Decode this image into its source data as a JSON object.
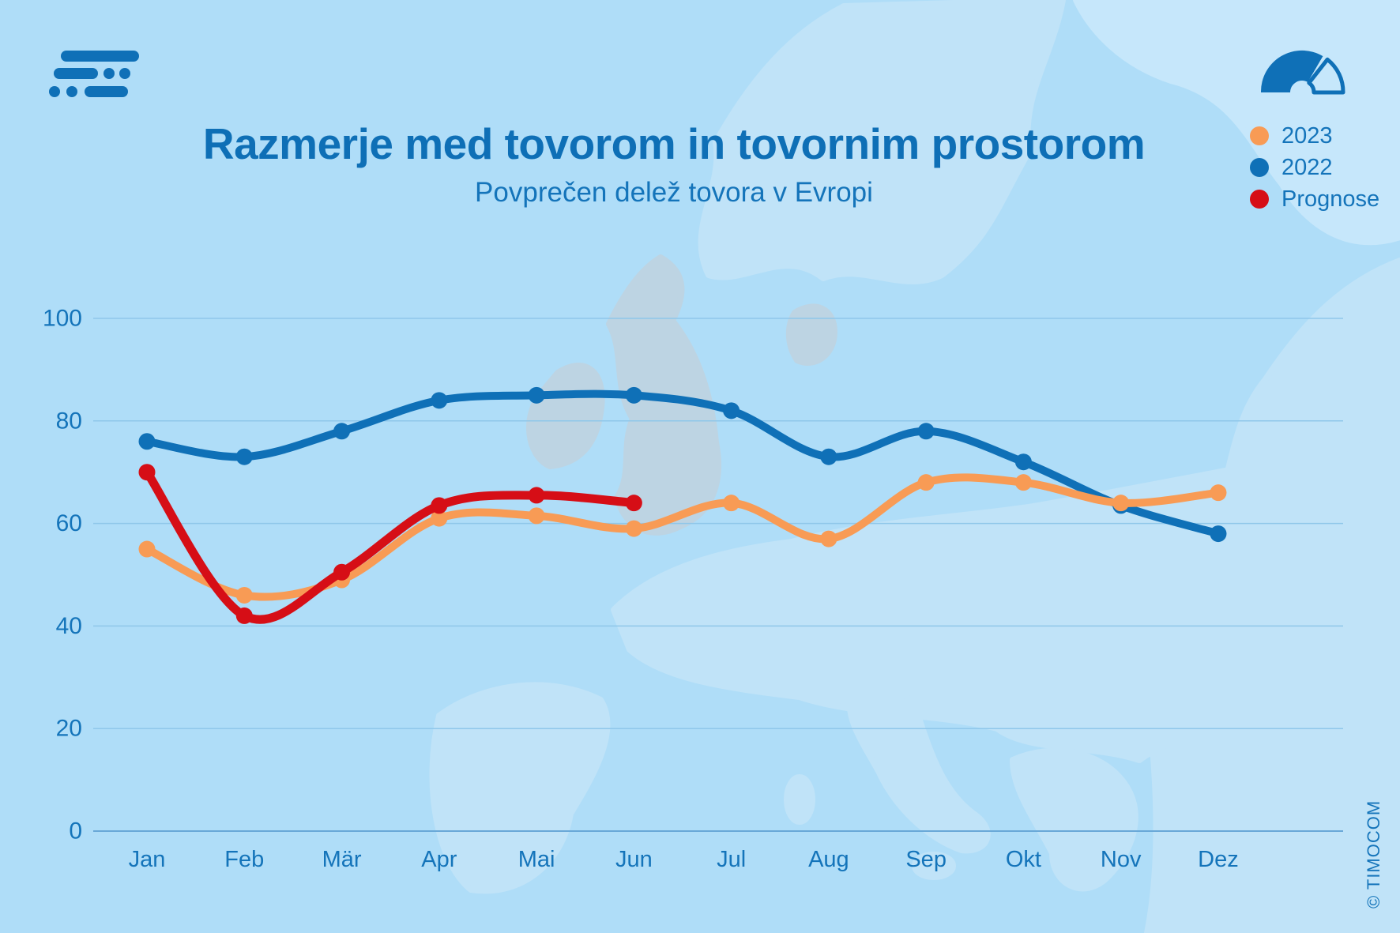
{
  "page": {
    "background": "#AFDDF8",
    "accent_blue": "#0F70B7",
    "grid_color": "#8FC7EA",
    "axis_color": "#69A8D7",
    "map_land_color": "#C0E3F8",
    "map_land_gray": "#BDD4E3"
  },
  "header": {
    "title": "Razmerje med tovorom in tovornim prostorom",
    "subtitle": "Povprečen delež tovora v Evropi"
  },
  "branding": {
    "copyright": "© TIMOCOM"
  },
  "legend": {
    "items": [
      {
        "label": "2023",
        "color": "#F89B55"
      },
      {
        "label": "2022",
        "color": "#0F70B7"
      },
      {
        "label": "Prognose",
        "color": "#D60E16"
      }
    ]
  },
  "chart_data": {
    "type": "line",
    "categories": [
      "Jan",
      "Feb",
      "Mär",
      "Apr",
      "Mai",
      "Jun",
      "Jul",
      "Aug",
      "Sep",
      "Okt",
      "Nov",
      "Dez"
    ],
    "series": [
      {
        "name": "2022",
        "color": "#0F70B7",
        "stroke_width": 10,
        "values": [
          76,
          73,
          78,
          84,
          85,
          85,
          82,
          73,
          78,
          72,
          63.5,
          58
        ]
      },
      {
        "name": "2023",
        "color": "#F89B55",
        "stroke_width": 10,
        "values": [
          55,
          46,
          49,
          61,
          61.5,
          59,
          64,
          57,
          68,
          68,
          64,
          66
        ]
      },
      {
        "name": "Prognose",
        "color": "#D60E16",
        "stroke_width": 11,
        "values": [
          70,
          42,
          50.5,
          63.5,
          65.5,
          64
        ]
      }
    ],
    "ylim": [
      0,
      100
    ],
    "yticks": [
      0,
      20,
      40,
      60,
      80,
      100
    ],
    "grid": true,
    "legend_position": "top-right",
    "xlabel": "",
    "ylabel": ""
  }
}
